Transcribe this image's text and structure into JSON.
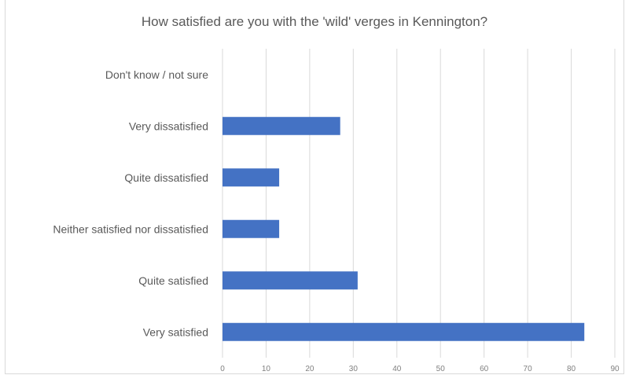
{
  "chart_data": {
    "type": "bar",
    "orientation": "horizontal",
    "title": "How satisfied are you with the 'wild' verges in Kennington?",
    "categories": [
      "Don't know / not sure",
      "Very dissatisfied",
      "Quite dissatisfied",
      "Neither satisfied nor dissatisfied",
      "Quite satisfied",
      "Very satisfied"
    ],
    "values": [
      0,
      27,
      13,
      13,
      31,
      83
    ],
    "xlim": [
      0,
      90
    ],
    "xticks": [
      "0",
      "10",
      "20",
      "30",
      "40",
      "50",
      "60",
      "70",
      "80",
      "90"
    ],
    "grid": true,
    "colors": {
      "bar": "#4472c4",
      "grid": "#d9d9d9",
      "text": "#595959"
    }
  }
}
